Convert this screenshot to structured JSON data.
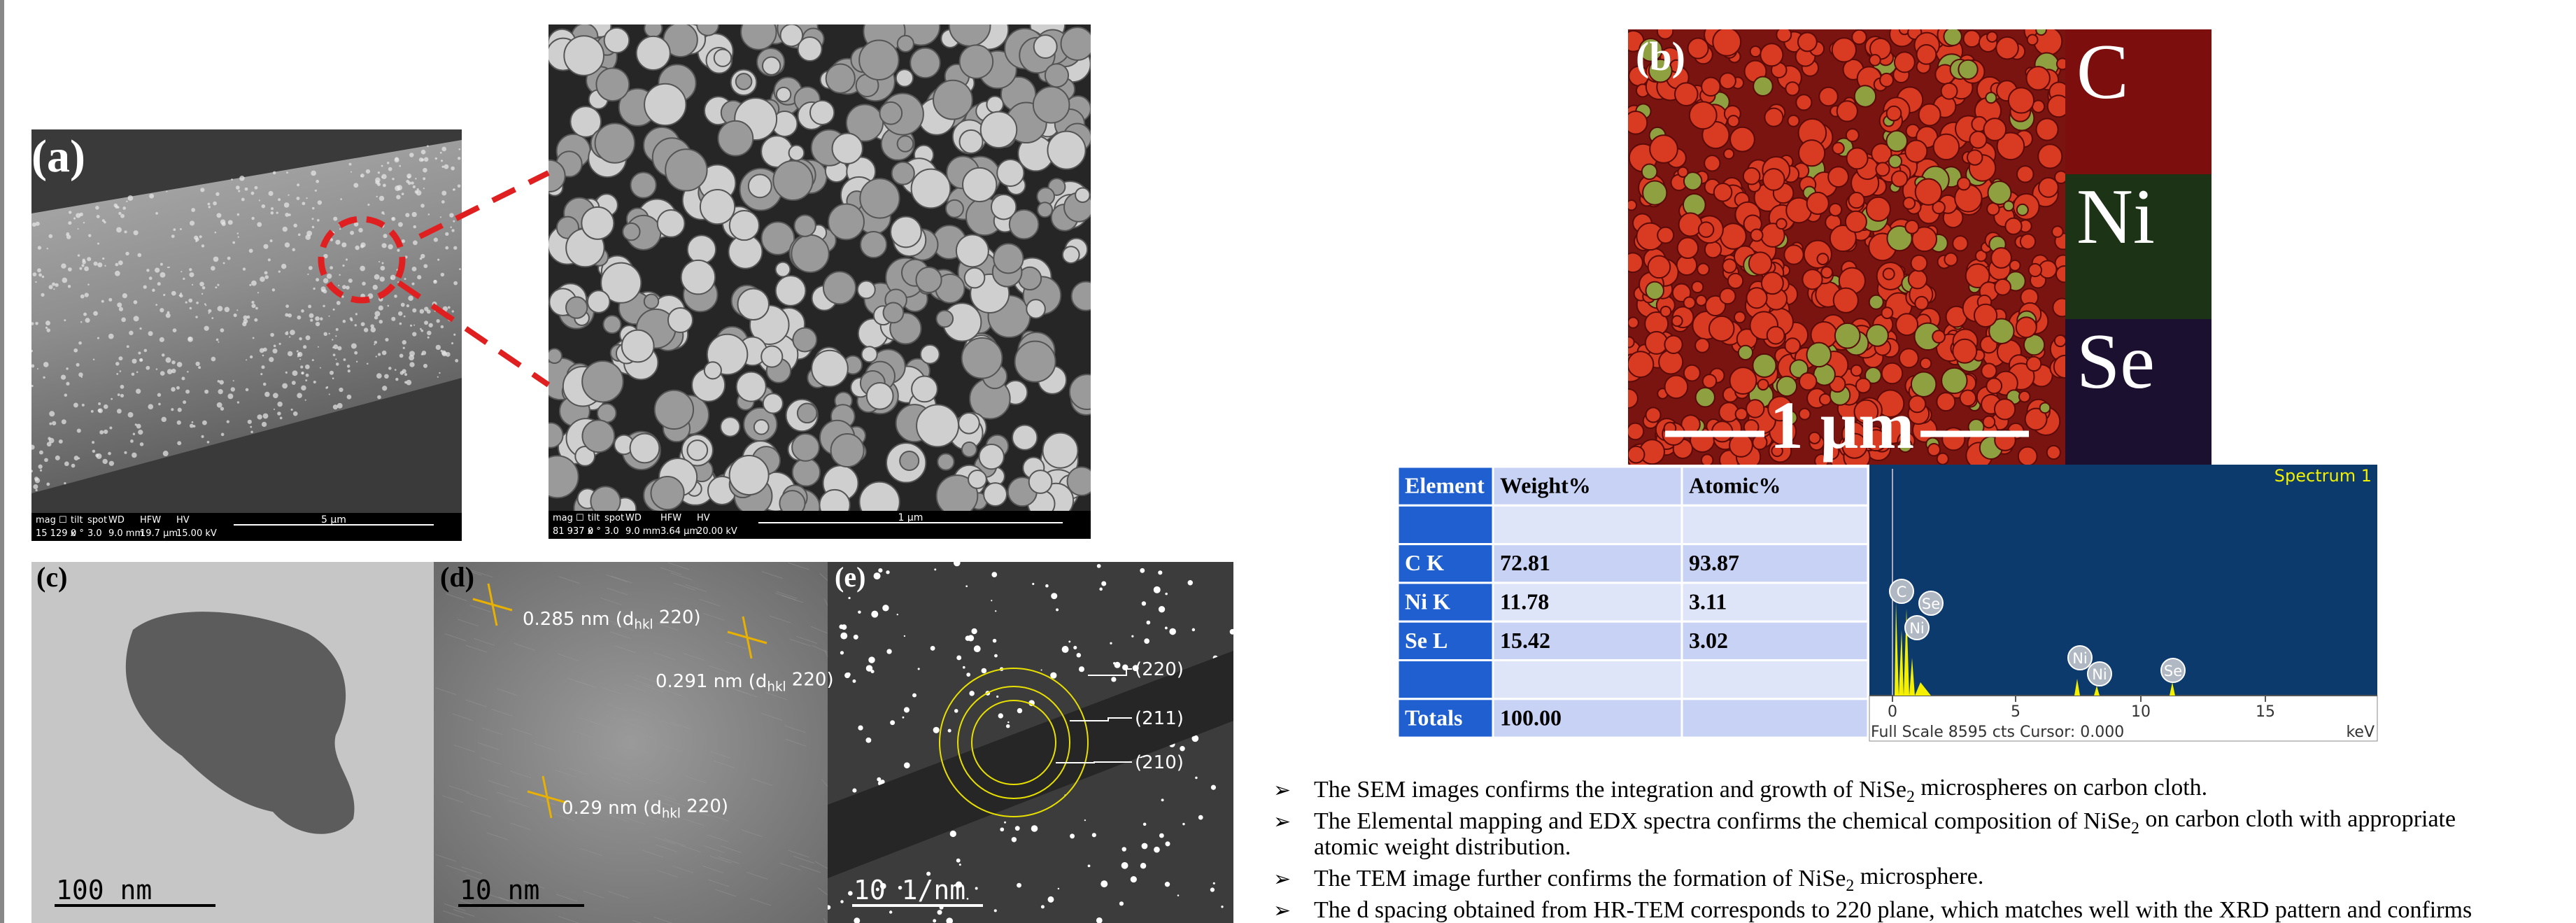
{
  "panel_a": {
    "label": "(a)",
    "info_headers": [
      "mag ☐",
      "tilt",
      "spot",
      "WD",
      "HFW",
      "HV"
    ],
    "info_values": [
      "15 129 x",
      "0 °",
      "3.0",
      "9.0 mm",
      "19.7 μm",
      "15.00 kV"
    ],
    "scale_bar": "5 μm"
  },
  "panel_a_zoom": {
    "info_headers": [
      "mag ☐",
      "tilt",
      "spot",
      "WD",
      "HFW",
      "HV"
    ],
    "info_values": [
      "81 937 x",
      "0 °",
      "3.0",
      "9.0 mm",
      "3.64 μm",
      "20.00 kV"
    ],
    "scale_bar": "1 μm"
  },
  "panel_b": {
    "label": "(b)",
    "scale_bar": "1 μm",
    "elements": [
      "C",
      "Ni",
      "Se"
    ]
  },
  "table": {
    "rows": [
      [
        "Element",
        "Weight%",
        "Atomic%"
      ],
      [
        null,
        null,
        null
      ],
      [
        "C K",
        "72.81",
        "93.87"
      ],
      [
        "Ni K",
        "11.78",
        "3.11"
      ],
      [
        "Se L",
        "15.42",
        "3.02"
      ],
      [
        null,
        null,
        null
      ],
      [
        "Totals",
        "100.00",
        null
      ]
    ]
  },
  "spectrum": {
    "title": "Spectrum 1",
    "peak_labels": [
      "C",
      "Se",
      "Ni",
      "Ni",
      "Ni",
      "Se"
    ],
    "ticks": [
      "0",
      "5",
      "10",
      "15"
    ],
    "footer": "Full Scale 8595 cts Cursor: 0.000",
    "unit": "keV"
  },
  "panel_c": {
    "label": "(c)",
    "scale_bar": "100 nm"
  },
  "panel_d": {
    "label": "(d)",
    "scale_bar": "10 nm",
    "annotations": [
      [
        "0.285 nm (d",
        "hkl",
        " 220)"
      ],
      [
        "0.291 nm (d",
        "hkl",
        " 220)"
      ],
      [
        "0.29 nm (d",
        "hkl",
        " 220)"
      ]
    ]
  },
  "panel_e": {
    "label": "(e)",
    "scale_bar": "10 1/nm",
    "rings": [
      "(220)",
      "(211)",
      "(210)"
    ]
  },
  "bullets": [
    [
      [
        "The SEM images confirms the integration and growth of NiSe",
        "2",
        " microspheres on carbon cloth."
      ]
    ],
    [
      [
        "The Elemental mapping and EDX spectra confirms the chemical composition of NiSe",
        "2",
        " on carbon cloth with appropriate"
      ],
      [
        "atomic weight distribution."
      ]
    ],
    [
      [
        "The TEM image further confirms the formation of NiSe",
        "2",
        " microsphere."
      ]
    ],
    [
      [
        "The d spacing obtained from HR-TEM corresponds to 220 plane, which matches well with the XRD pattern and confirms"
      ]
    ]
  ]
}
